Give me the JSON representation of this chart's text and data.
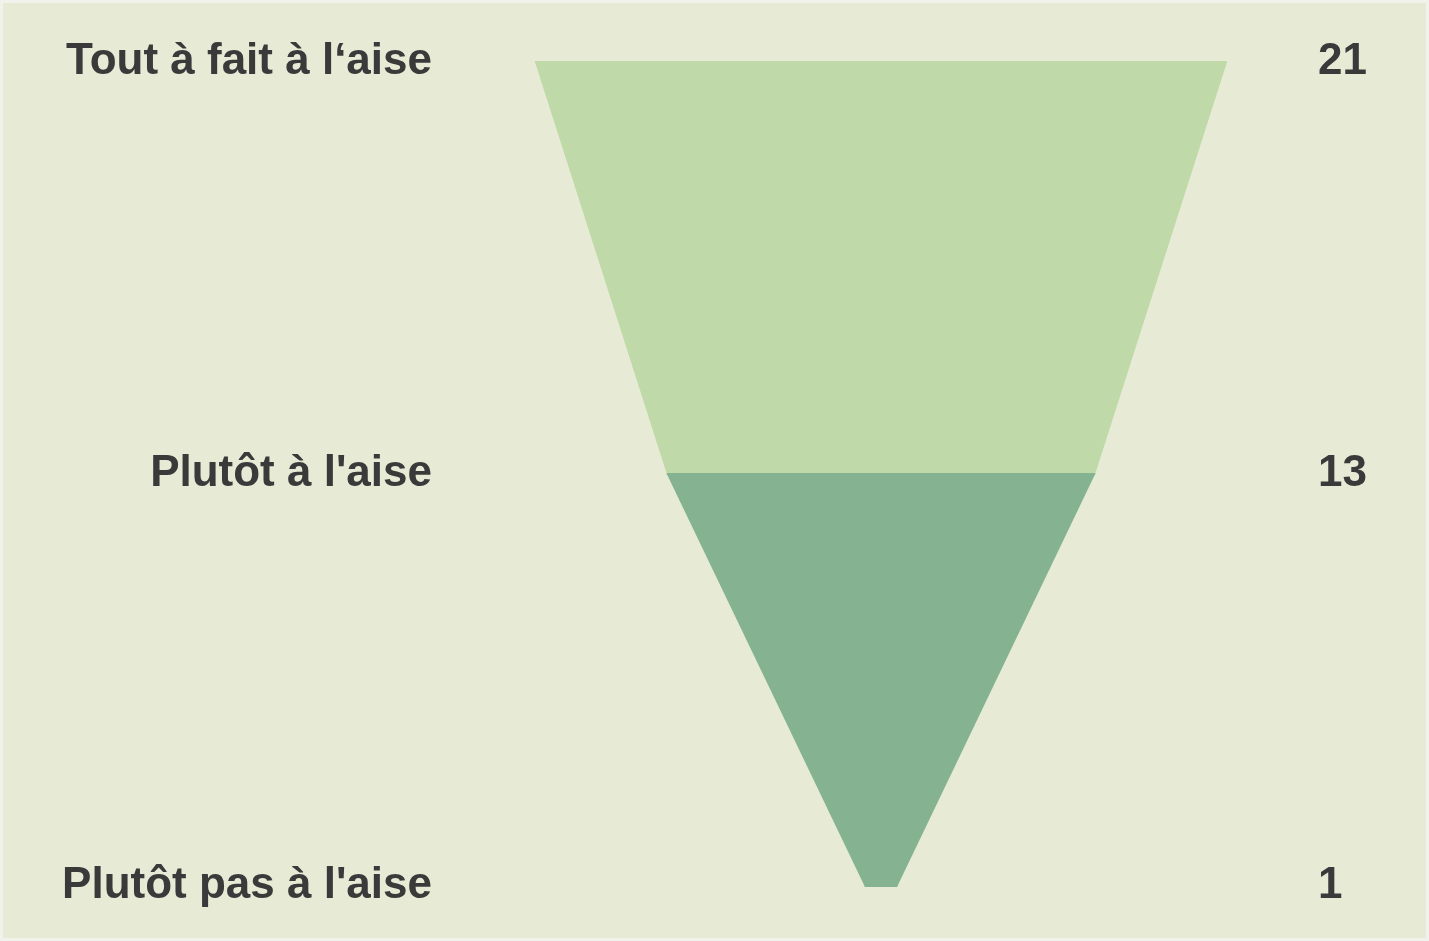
{
  "chart_data": {
    "type": "other",
    "categories": [
      "Tout à fait à l‘aise",
      "Plutôt à l'aise",
      "Plutôt pas à l'aise"
    ],
    "values": [
      21,
      13,
      1
    ],
    "colors": [
      "#bfd9a8",
      "#85b392",
      "#85b392"
    ],
    "data_labels": true
  }
}
